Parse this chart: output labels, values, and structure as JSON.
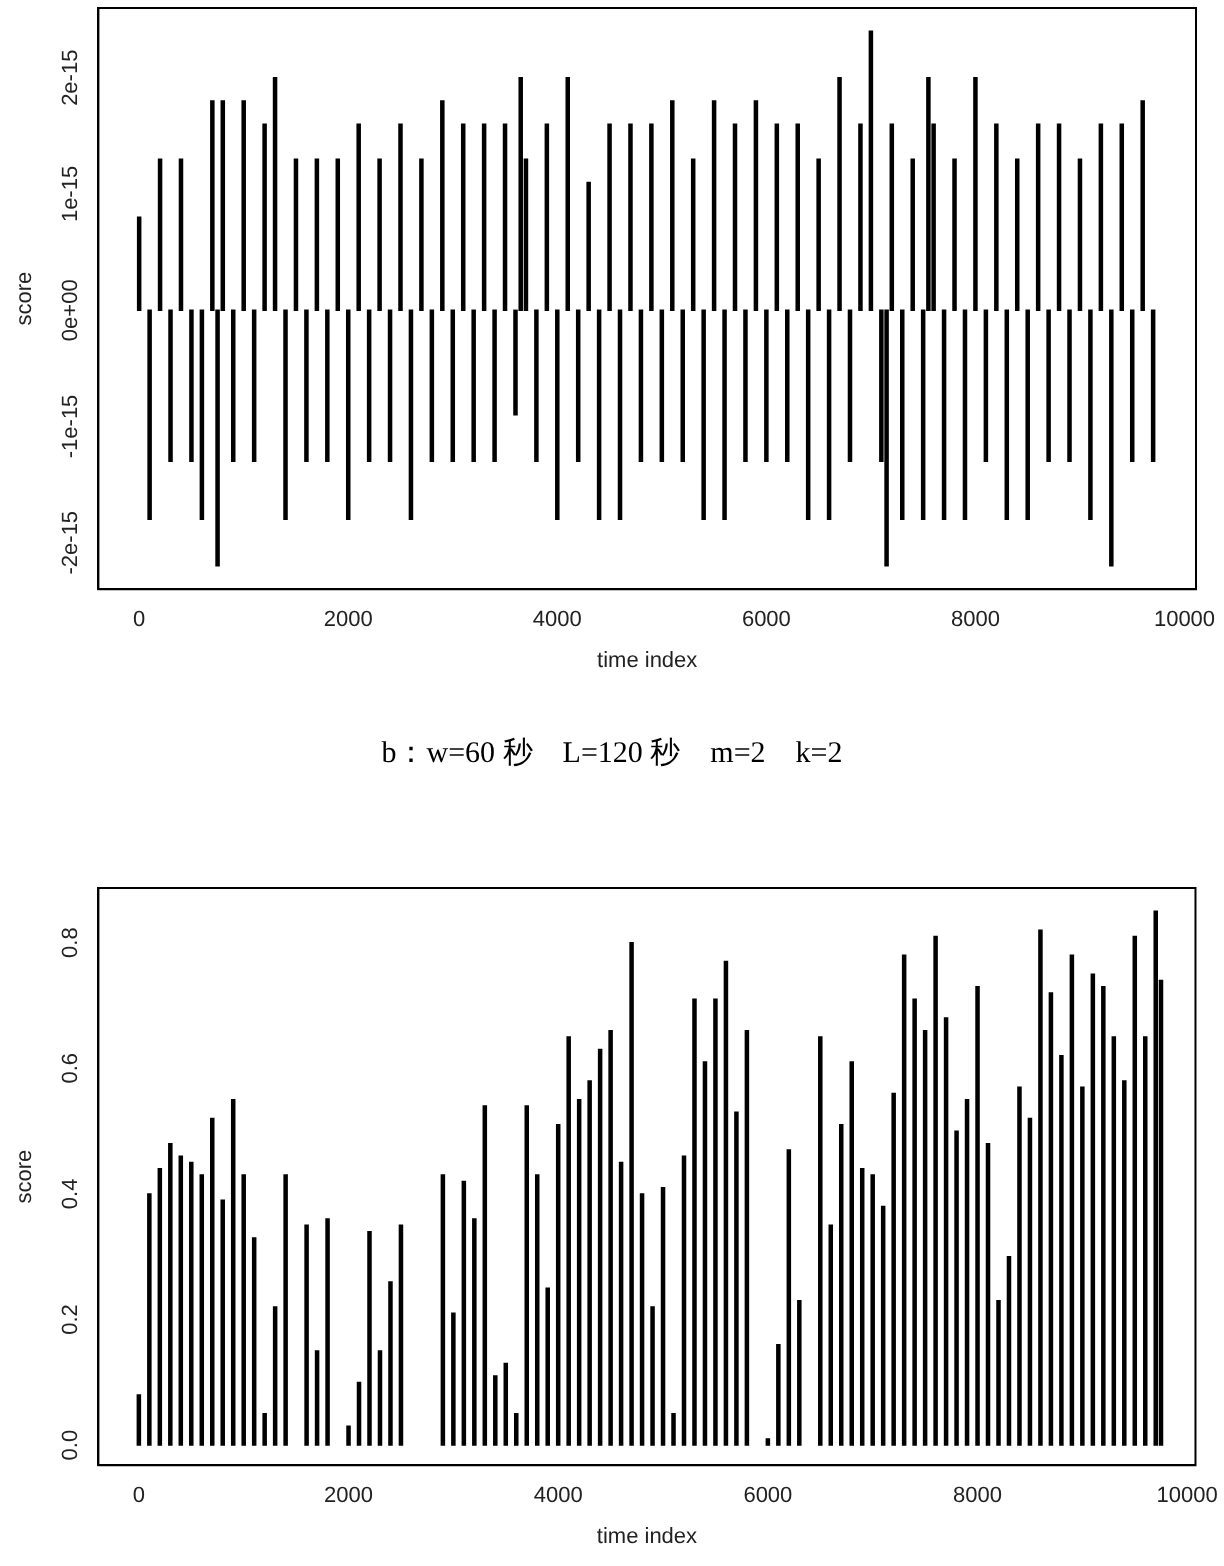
{
  "chart_data": [
    {
      "type": "bar",
      "xlabel": "time index",
      "ylabel": "score",
      "annotations": [
        "b：w=60 秒　L=120 秒　m=2　k=2"
      ],
      "xlim": [
        -390,
        10110
      ],
      "xticks": [
        0,
        2000,
        4000,
        6000,
        8000,
        10000
      ],
      "ylim": [
        -2.4e-15,
        2.6e-15
      ],
      "yticks": [
        {
          "value": -2e-15,
          "label": "-2e-15"
        },
        {
          "value": -1e-15,
          "label": "-1e-15"
        },
        {
          "value": 0,
          "label": "0e+00"
        },
        {
          "value": 1e-15,
          "label": "1e-15"
        },
        {
          "value": 2e-15,
          "label": "2e-15"
        }
      ],
      "grid": false,
      "series": [
        {
          "color": "#000000",
          "x": [
            0,
            100,
            200,
            300,
            400,
            500,
            600,
            700,
            750,
            800,
            900,
            1000,
            1100,
            1200,
            1300,
            1400,
            1500,
            1600,
            1700,
            1800,
            1900,
            2000,
            2100,
            2200,
            2300,
            2400,
            2500,
            2600,
            2700,
            2800,
            2900,
            3000,
            3100,
            3200,
            3300,
            3400,
            3500,
            3600,
            3650,
            3700,
            3800,
            3900,
            4000,
            4100,
            4200,
            4300,
            4400,
            4500,
            4600,
            4700,
            4800,
            4900,
            5000,
            5100,
            5200,
            5300,
            5400,
            5500,
            5600,
            5700,
            5800,
            5900,
            6000,
            6100,
            6200,
            6300,
            6400,
            6500,
            6600,
            6700,
            6800,
            6900,
            7000,
            7100,
            7150,
            7200,
            7300,
            7400,
            7500,
            7550,
            7600,
            7700,
            7800,
            7900,
            8000,
            8100,
            8200,
            8300,
            8400,
            8500,
            8600,
            8700,
            8800,
            8900,
            9000,
            9100,
            9200,
            9300,
            9400,
            9500,
            9600,
            9700
          ],
          "values": [
            8e-16,
            -1.8e-15,
            1.3e-15,
            -1.3e-15,
            1.3e-15,
            -1.3e-15,
            -1.8e-15,
            1.8e-15,
            -2.2e-15,
            1.8e-15,
            -1.3e-15,
            1.8e-15,
            -1.3e-15,
            1.6e-15,
            2e-15,
            -1.8e-15,
            1.3e-15,
            -1.3e-15,
            1.3e-15,
            -1.3e-15,
            1.3e-15,
            -1.8e-15,
            1.6e-15,
            -1.3e-15,
            1.3e-15,
            -1.3e-15,
            1.6e-15,
            -1.8e-15,
            1.3e-15,
            -1.3e-15,
            1.8e-15,
            -1.3e-15,
            1.6e-15,
            -1.3e-15,
            1.6e-15,
            -1.3e-15,
            1.6e-15,
            -9e-16,
            2e-15,
            1.3e-15,
            -1.3e-15,
            1.6e-15,
            -1.8e-15,
            2e-15,
            -1.3e-15,
            1.1e-15,
            -1.8e-15,
            1.6e-15,
            -1.8e-15,
            1.6e-15,
            -1.3e-15,
            1.6e-15,
            -1.3e-15,
            1.8e-15,
            -1.3e-15,
            1.3e-15,
            -1.8e-15,
            1.8e-15,
            -1.8e-15,
            1.6e-15,
            -1.3e-15,
            1.8e-15,
            -1.3e-15,
            1.6e-15,
            -1.3e-15,
            1.6e-15,
            -1.8e-15,
            1.3e-15,
            -1.8e-15,
            2e-15,
            -1.3e-15,
            1.6e-15,
            2.4e-15,
            -1.3e-15,
            -2.2e-15,
            1.6e-15,
            -1.8e-15,
            1.3e-15,
            -1.8e-15,
            2e-15,
            1.6e-15,
            -1.8e-15,
            1.3e-15,
            -1.8e-15,
            2e-15,
            -1.3e-15,
            1.6e-15,
            -1.8e-15,
            1.3e-15,
            -1.8e-15,
            1.6e-15,
            -1.3e-15,
            1.6e-15,
            -1.3e-15,
            1.3e-15,
            -1.8e-15,
            1.6e-15,
            -2.2e-15,
            1.6e-15,
            -1.3e-15,
            1.8e-15,
            -1.3e-15
          ]
        }
      ]
    },
    {
      "type": "bar",
      "xlabel": "time index",
      "ylabel": "score",
      "xlim": [
        -386,
        10079
      ],
      "xticks": [
        0,
        2000,
        4000,
        6000,
        8000,
        10000
      ],
      "ylim": [
        -0.032,
        0.887
      ],
      "yticks": [
        {
          "value": 0,
          "label": "0.0"
        },
        {
          "value": 0.2,
          "label": "0.2"
        },
        {
          "value": 0.4,
          "label": "0.4"
        },
        {
          "value": 0.6,
          "label": "0.6"
        },
        {
          "value": 0.8,
          "label": "0.8"
        }
      ],
      "grid": false,
      "series": [
        {
          "color": "#000000",
          "x": [
            0,
            100,
            200,
            300,
            400,
            500,
            600,
            700,
            800,
            900,
            1000,
            1100,
            1200,
            1300,
            1400,
            1600,
            1700,
            1800,
            2000,
            2100,
            2200,
            2300,
            2400,
            2500,
            2900,
            3000,
            3100,
            3200,
            3300,
            3400,
            3500,
            3600,
            3700,
            3800,
            3900,
            4000,
            4100,
            4200,
            4300,
            4400,
            4500,
            4600,
            4700,
            4800,
            4900,
            5000,
            5100,
            5200,
            5300,
            5400,
            5500,
            5600,
            5700,
            5800,
            6000,
            6100,
            6200,
            6300,
            6500,
            6600,
            6700,
            6800,
            6900,
            7000,
            7100,
            7200,
            7300,
            7400,
            7500,
            7600,
            7700,
            7800,
            7900,
            8000,
            8100,
            8200,
            8300,
            8400,
            8500,
            8600,
            8700,
            8800,
            8900,
            9000,
            9100,
            9200,
            9300,
            9400,
            9500,
            9600,
            9700,
            9750
          ],
          "values": [
            0.08,
            0.4,
            0.44,
            0.48,
            0.46,
            0.45,
            0.43,
            0.52,
            0.39,
            0.55,
            0.43,
            0.33,
            0.05,
            0.22,
            0.43,
            0.35,
            0.15,
            0.36,
            0.03,
            0.1,
            0.34,
            0.15,
            0.26,
            0.35,
            0.43,
            0.21,
            0.42,
            0.36,
            0.54,
            0.11,
            0.13,
            0.05,
            0.54,
            0.43,
            0.25,
            0.51,
            0.65,
            0.55,
            0.58,
            0.63,
            0.66,
            0.45,
            0.8,
            0.4,
            0.22,
            0.41,
            0.05,
            0.46,
            0.71,
            0.61,
            0.71,
            0.77,
            0.53,
            0.66,
            0.01,
            0.16,
            0.47,
            0.23,
            0.65,
            0.35,
            0.51,
            0.61,
            0.44,
            0.43,
            0.38,
            0.56,
            0.78,
            0.71,
            0.66,
            0.81,
            0.68,
            0.5,
            0.55,
            0.73,
            0.48,
            0.23,
            0.3,
            0.57,
            0.52,
            0.82,
            0.72,
            0.62,
            0.78,
            0.57,
            0.75,
            0.73,
            0.65,
            0.58,
            0.81,
            0.65,
            0.85,
            0.74
          ]
        }
      ]
    }
  ]
}
